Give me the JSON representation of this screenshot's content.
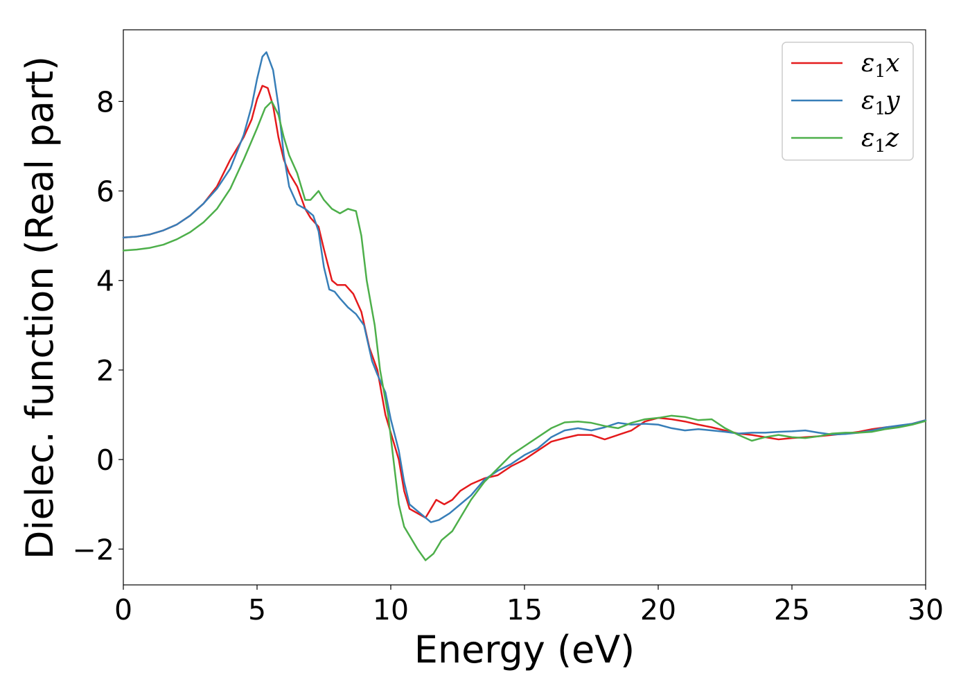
{
  "chart_data": {
    "type": "line",
    "title": "",
    "xlabel": "Energy (eV)",
    "ylabel": "Dielec. function (Real part)",
    "xlim": [
      0,
      30
    ],
    "ylim": [
      -2.8,
      9.6
    ],
    "xticks": [
      0,
      5,
      10,
      15,
      20,
      25,
      30
    ],
    "yticks": [
      -2,
      0,
      2,
      4,
      6,
      8
    ],
    "xtick_labels": [
      "0",
      "5",
      "10",
      "15",
      "20",
      "25",
      "30"
    ],
    "ytick_labels": [
      "−2",
      "0",
      "2",
      "4",
      "6",
      "8"
    ],
    "grid": false,
    "legend_position": "top-right",
    "series": [
      {
        "name": "ε1x",
        "legend_main": "ε",
        "legend_sub": "1",
        "legend_var": "x",
        "color": "#e41a1c",
        "points": [
          [
            0,
            4.96
          ],
          [
            0.5,
            4.98
          ],
          [
            1,
            5.03
          ],
          [
            1.5,
            5.12
          ],
          [
            2,
            5.25
          ],
          [
            2.5,
            5.45
          ],
          [
            3,
            5.72
          ],
          [
            3.5,
            6.1
          ],
          [
            4,
            6.7
          ],
          [
            4.5,
            7.2
          ],
          [
            4.8,
            7.6
          ],
          [
            5.0,
            8.05
          ],
          [
            5.2,
            8.35
          ],
          [
            5.4,
            8.3
          ],
          [
            5.6,
            7.9
          ],
          [
            5.8,
            7.2
          ],
          [
            6.0,
            6.7
          ],
          [
            6.2,
            6.4
          ],
          [
            6.5,
            6.1
          ],
          [
            6.8,
            5.6
          ],
          [
            7.0,
            5.4
          ],
          [
            7.3,
            5.2
          ],
          [
            7.5,
            4.7
          ],
          [
            7.8,
            4.0
          ],
          [
            8.0,
            3.9
          ],
          [
            8.3,
            3.9
          ],
          [
            8.6,
            3.7
          ],
          [
            8.9,
            3.3
          ],
          [
            9.2,
            2.5
          ],
          [
            9.5,
            2.0
          ],
          [
            9.8,
            1.0
          ],
          [
            10.0,
            0.6
          ],
          [
            10.3,
            0.0
          ],
          [
            10.5,
            -0.7
          ],
          [
            10.7,
            -1.1
          ],
          [
            11.0,
            -1.2
          ],
          [
            11.3,
            -1.3
          ],
          [
            11.5,
            -1.1
          ],
          [
            11.7,
            -0.9
          ],
          [
            12.0,
            -1.0
          ],
          [
            12.3,
            -0.9
          ],
          [
            12.6,
            -0.7
          ],
          [
            13.0,
            -0.55
          ],
          [
            13.5,
            -0.42
          ],
          [
            14.0,
            -0.35
          ],
          [
            14.5,
            -0.15
          ],
          [
            15.0,
            0.0
          ],
          [
            15.5,
            0.2
          ],
          [
            16.0,
            0.4
          ],
          [
            16.5,
            0.48
          ],
          [
            17.0,
            0.55
          ],
          [
            17.5,
            0.55
          ],
          [
            18.0,
            0.45
          ],
          [
            18.5,
            0.55
          ],
          [
            19.0,
            0.65
          ],
          [
            19.5,
            0.85
          ],
          [
            20.0,
            0.93
          ],
          [
            20.5,
            0.9
          ],
          [
            21.0,
            0.85
          ],
          [
            21.5,
            0.78
          ],
          [
            22.0,
            0.72
          ],
          [
            22.5,
            0.65
          ],
          [
            23.0,
            0.58
          ],
          [
            23.5,
            0.55
          ],
          [
            24.0,
            0.5
          ],
          [
            24.5,
            0.45
          ],
          [
            25.0,
            0.48
          ],
          [
            25.5,
            0.5
          ],
          [
            26.0,
            0.52
          ],
          [
            26.5,
            0.55
          ],
          [
            27.0,
            0.58
          ],
          [
            27.5,
            0.62
          ],
          [
            28.0,
            0.68
          ],
          [
            28.5,
            0.72
          ],
          [
            29.0,
            0.75
          ],
          [
            29.5,
            0.8
          ],
          [
            30.0,
            0.88
          ]
        ]
      },
      {
        "name": "ε1y",
        "legend_main": "ε",
        "legend_sub": "1",
        "legend_var": "y",
        "color": "#377eb8",
        "points": [
          [
            0,
            4.96
          ],
          [
            0.5,
            4.98
          ],
          [
            1,
            5.03
          ],
          [
            1.5,
            5.12
          ],
          [
            2,
            5.25
          ],
          [
            2.5,
            5.45
          ],
          [
            3,
            5.72
          ],
          [
            3.5,
            6.05
          ],
          [
            4,
            6.5
          ],
          [
            4.5,
            7.25
          ],
          [
            4.8,
            7.9
          ],
          [
            5.0,
            8.5
          ],
          [
            5.2,
            9.0
          ],
          [
            5.35,
            9.1
          ],
          [
            5.6,
            8.7
          ],
          [
            5.8,
            7.9
          ],
          [
            6.0,
            6.8
          ],
          [
            6.2,
            6.1
          ],
          [
            6.5,
            5.7
          ],
          [
            6.8,
            5.6
          ],
          [
            7.1,
            5.45
          ],
          [
            7.3,
            5.1
          ],
          [
            7.5,
            4.3
          ],
          [
            7.7,
            3.8
          ],
          [
            7.9,
            3.75
          ],
          [
            8.1,
            3.6
          ],
          [
            8.4,
            3.4
          ],
          [
            8.7,
            3.25
          ],
          [
            9.0,
            3.0
          ],
          [
            9.3,
            2.2
          ],
          [
            9.5,
            1.9
          ],
          [
            9.8,
            1.5
          ],
          [
            10.0,
            0.9
          ],
          [
            10.3,
            0.2
          ],
          [
            10.5,
            -0.5
          ],
          [
            10.7,
            -1.0
          ],
          [
            11.0,
            -1.15
          ],
          [
            11.3,
            -1.3
          ],
          [
            11.5,
            -1.4
          ],
          [
            11.8,
            -1.35
          ],
          [
            12.2,
            -1.2
          ],
          [
            12.6,
            -1.0
          ],
          [
            13.0,
            -0.8
          ],
          [
            13.5,
            -0.45
          ],
          [
            14.0,
            -0.25
          ],
          [
            14.5,
            -0.1
          ],
          [
            15.0,
            0.1
          ],
          [
            15.5,
            0.25
          ],
          [
            16.0,
            0.5
          ],
          [
            16.5,
            0.65
          ],
          [
            17.0,
            0.7
          ],
          [
            17.5,
            0.65
          ],
          [
            18.0,
            0.72
          ],
          [
            18.5,
            0.82
          ],
          [
            19.0,
            0.78
          ],
          [
            19.5,
            0.8
          ],
          [
            20.0,
            0.78
          ],
          [
            20.5,
            0.7
          ],
          [
            21.0,
            0.65
          ],
          [
            21.5,
            0.68
          ],
          [
            22.0,
            0.65
          ],
          [
            22.5,
            0.62
          ],
          [
            23.0,
            0.58
          ],
          [
            23.5,
            0.6
          ],
          [
            24.0,
            0.6
          ],
          [
            24.5,
            0.62
          ],
          [
            25.0,
            0.63
          ],
          [
            25.5,
            0.65
          ],
          [
            26.0,
            0.6
          ],
          [
            26.5,
            0.56
          ],
          [
            27.0,
            0.57
          ],
          [
            27.5,
            0.6
          ],
          [
            28.0,
            0.65
          ],
          [
            28.5,
            0.72
          ],
          [
            29.0,
            0.76
          ],
          [
            29.5,
            0.8
          ],
          [
            30.0,
            0.88
          ]
        ]
      },
      {
        "name": "ε1z",
        "legend_main": "ε",
        "legend_sub": "1",
        "legend_var": "z",
        "color": "#4daf4a",
        "points": [
          [
            0,
            4.67
          ],
          [
            0.5,
            4.69
          ],
          [
            1,
            4.73
          ],
          [
            1.5,
            4.8
          ],
          [
            2,
            4.92
          ],
          [
            2.5,
            5.08
          ],
          [
            3,
            5.3
          ],
          [
            3.5,
            5.6
          ],
          [
            4,
            6.05
          ],
          [
            4.5,
            6.7
          ],
          [
            5.0,
            7.4
          ],
          [
            5.3,
            7.85
          ],
          [
            5.55,
            8.0
          ],
          [
            5.8,
            7.7
          ],
          [
            6.0,
            7.2
          ],
          [
            6.2,
            6.8
          ],
          [
            6.5,
            6.4
          ],
          [
            6.8,
            5.8
          ],
          [
            7.0,
            5.8
          ],
          [
            7.3,
            6.0
          ],
          [
            7.5,
            5.8
          ],
          [
            7.8,
            5.6
          ],
          [
            8.1,
            5.5
          ],
          [
            8.4,
            5.6
          ],
          [
            8.7,
            5.55
          ],
          [
            8.9,
            5.0
          ],
          [
            9.1,
            4.0
          ],
          [
            9.4,
            3.0
          ],
          [
            9.6,
            2.0
          ],
          [
            9.9,
            1.0
          ],
          [
            10.1,
            0.0
          ],
          [
            10.3,
            -1.0
          ],
          [
            10.5,
            -1.5
          ],
          [
            10.8,
            -1.8
          ],
          [
            11.0,
            -2.0
          ],
          [
            11.3,
            -2.25
          ],
          [
            11.6,
            -2.1
          ],
          [
            11.9,
            -1.8
          ],
          [
            12.3,
            -1.6
          ],
          [
            12.7,
            -1.2
          ],
          [
            13.0,
            -0.9
          ],
          [
            13.5,
            -0.5
          ],
          [
            14.0,
            -0.2
          ],
          [
            14.5,
            0.1
          ],
          [
            15.0,
            0.3
          ],
          [
            15.5,
            0.5
          ],
          [
            16.0,
            0.7
          ],
          [
            16.5,
            0.83
          ],
          [
            17.0,
            0.85
          ],
          [
            17.5,
            0.82
          ],
          [
            18.0,
            0.75
          ],
          [
            18.5,
            0.7
          ],
          [
            19.0,
            0.82
          ],
          [
            19.5,
            0.9
          ],
          [
            20.0,
            0.93
          ],
          [
            20.5,
            0.98
          ],
          [
            21.0,
            0.95
          ],
          [
            21.5,
            0.88
          ],
          [
            22.0,
            0.9
          ],
          [
            22.5,
            0.7
          ],
          [
            23.0,
            0.55
          ],
          [
            23.5,
            0.42
          ],
          [
            24.0,
            0.5
          ],
          [
            24.5,
            0.55
          ],
          [
            25.0,
            0.5
          ],
          [
            25.5,
            0.48
          ],
          [
            26.0,
            0.52
          ],
          [
            26.5,
            0.58
          ],
          [
            27.0,
            0.6
          ],
          [
            27.5,
            0.6
          ],
          [
            28.0,
            0.62
          ],
          [
            28.5,
            0.68
          ],
          [
            29.0,
            0.72
          ],
          [
            29.5,
            0.78
          ],
          [
            30.0,
            0.86
          ]
        ]
      }
    ]
  }
}
